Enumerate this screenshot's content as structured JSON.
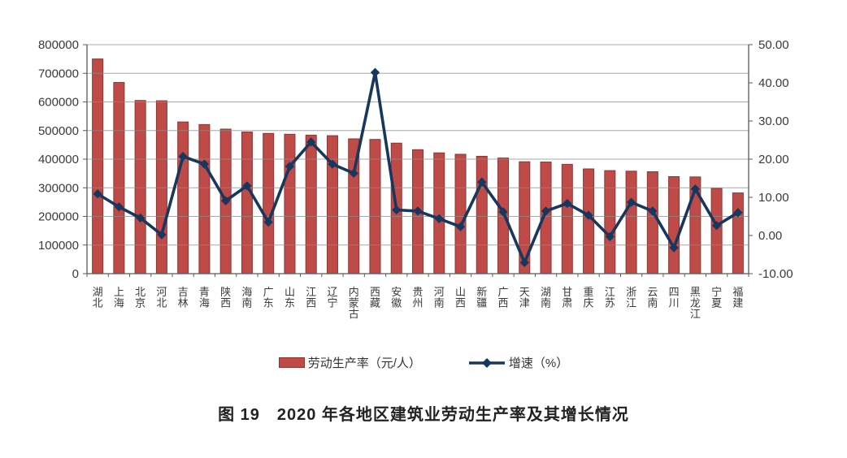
{
  "figure": {
    "caption": "图 19　2020 年各地区建筑业劳动生产率及其增长情况"
  },
  "legend": {
    "bar_label": "劳动生产率（元/人）",
    "line_label": "增速（%）"
  },
  "colors": {
    "bar_fill": "#BE4B48",
    "bar_border": "#8E3634",
    "line": "#17375E",
    "grid": "#8C8C8C",
    "axis": "#595959",
    "text": "#3a3a3a"
  },
  "chart_data": {
    "type": "bar",
    "title": "图 19　2020 年各地区建筑业劳动生产率及其增长情况",
    "grid": true,
    "legend_position": "bottom",
    "categories": [
      "湖北",
      "上海",
      "北京",
      "河北",
      "吉林",
      "青海",
      "陕西",
      "海南",
      "广东",
      "山东",
      "江西",
      "辽宁",
      "内蒙古",
      "西藏",
      "安徽",
      "贵州",
      "河南",
      "山西",
      "新疆",
      "广西",
      "天津",
      "湖南",
      "甘肃",
      "重庆",
      "江苏",
      "浙江",
      "云南",
      "四川",
      "黑龙江",
      "宁夏",
      "福建"
    ],
    "series": [
      {
        "name": "劳动生产率（元/人）",
        "type": "bar",
        "yaxis": "left",
        "values": [
          750000,
          668000,
          605000,
          604000,
          530000,
          521000,
          505000,
          495000,
          490000,
          487000,
          484000,
          482000,
          471000,
          469000,
          456000,
          433000,
          422000,
          417000,
          410000,
          404000,
          391000,
          390000,
          382000,
          366000,
          360000,
          358000,
          356000,
          339000,
          338000,
          298000,
          282000
        ]
      },
      {
        "name": "增速（%）",
        "type": "line",
        "yaxis": "right",
        "values": [
          10.9,
          7.5,
          4.6,
          0.2,
          20.7,
          18.7,
          9.1,
          13.0,
          3.5,
          18.1,
          24.5,
          18.7,
          16.3,
          42.7,
          6.7,
          6.4,
          4.4,
          2.3,
          14.0,
          6.2,
          -7.1,
          6.4,
          8.4,
          5.3,
          -0.3,
          8.7,
          6.4,
          -3.2,
          12.2,
          2.6,
          6.0
        ]
      }
    ],
    "left_axis": {
      "min": 0,
      "max": 800000,
      "step": 100000,
      "tick_labels": [
        "800000",
        "700000",
        "600000",
        "500000",
        "400000",
        "300000",
        "200000",
        "100000",
        "0"
      ]
    },
    "right_axis": {
      "min": -10,
      "max": 50,
      "step": 10,
      "tick_labels": [
        "50.00",
        "40.00",
        "30.00",
        "20.00",
        "10.00",
        "0.00",
        "-10.00"
      ]
    }
  }
}
